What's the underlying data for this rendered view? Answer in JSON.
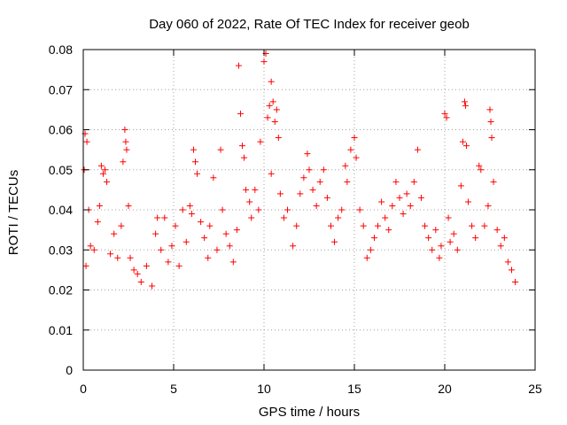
{
  "chart_data": {
    "type": "scatter",
    "title": "Day 060 of 2022, Rate Of TEC Index for receiver geob",
    "xlabel": "GPS time / hours",
    "ylabel": "ROTI / TECUs",
    "xlim": [
      0,
      25
    ],
    "ylim": [
      0,
      0.08
    ],
    "x_ticks": [
      0,
      5,
      10,
      15,
      20,
      25
    ],
    "y_ticks": [
      0,
      0.01,
      0.02,
      0.03,
      0.04,
      0.05,
      0.06,
      0.07,
      0.08
    ],
    "x_tick_labels": [
      "0",
      "5",
      "10",
      "15",
      "20",
      "25"
    ],
    "y_tick_labels": [
      "0",
      "0.01",
      "0.02",
      "0.03",
      "0.04",
      "0.05",
      "0.06",
      "0.07",
      "0.08"
    ],
    "grid": true,
    "legend": "none",
    "marker": "plus",
    "color": "#ff0000",
    "series": [
      {
        "points": [
          [
            0.1,
            0.059
          ],
          [
            0.2,
            0.057
          ],
          [
            0.05,
            0.05
          ],
          [
            0.3,
            0.04
          ],
          [
            0.15,
            0.026
          ],
          [
            0.4,
            0.031
          ],
          [
            0.6,
            0.03
          ],
          [
            0.8,
            0.037
          ],
          [
            1.0,
            0.051
          ],
          [
            1.1,
            0.049
          ],
          [
            1.2,
            0.05
          ],
          [
            1.3,
            0.047
          ],
          [
            0.9,
            0.041
          ],
          [
            1.5,
            0.029
          ],
          [
            1.7,
            0.034
          ],
          [
            1.9,
            0.028
          ],
          [
            2.1,
            0.036
          ],
          [
            2.3,
            0.06
          ],
          [
            2.35,
            0.057
          ],
          [
            2.4,
            0.055
          ],
          [
            2.2,
            0.052
          ],
          [
            2.5,
            0.041
          ],
          [
            2.6,
            0.028
          ],
          [
            2.8,
            0.025
          ],
          [
            3.0,
            0.024
          ],
          [
            3.2,
            0.022
          ],
          [
            3.5,
            0.026
          ],
          [
            3.8,
            0.021
          ],
          [
            4.0,
            0.034
          ],
          [
            4.1,
            0.038
          ],
          [
            4.3,
            0.03
          ],
          [
            4.5,
            0.038
          ],
          [
            4.7,
            0.027
          ],
          [
            4.9,
            0.031
          ],
          [
            5.1,
            0.036
          ],
          [
            5.3,
            0.026
          ],
          [
            5.5,
            0.04
          ],
          [
            5.7,
            0.032
          ],
          [
            5.9,
            0.041
          ],
          [
            6.0,
            0.039
          ],
          [
            6.1,
            0.055
          ],
          [
            6.2,
            0.052
          ],
          [
            6.3,
            0.049
          ],
          [
            6.5,
            0.037
          ],
          [
            6.7,
            0.033
          ],
          [
            6.9,
            0.028
          ],
          [
            7.0,
            0.036
          ],
          [
            7.2,
            0.048
          ],
          [
            7.4,
            0.03
          ],
          [
            7.6,
            0.055
          ],
          [
            7.7,
            0.04
          ],
          [
            7.9,
            0.034
          ],
          [
            8.1,
            0.031
          ],
          [
            8.3,
            0.027
          ],
          [
            8.5,
            0.035
          ],
          [
            8.6,
            0.076
          ],
          [
            8.7,
            0.064
          ],
          [
            8.8,
            0.056
          ],
          [
            8.9,
            0.053
          ],
          [
            9.0,
            0.045
          ],
          [
            9.2,
            0.042
          ],
          [
            9.3,
            0.038
          ],
          [
            9.5,
            0.045
          ],
          [
            9.7,
            0.04
          ],
          [
            9.8,
            0.057
          ],
          [
            10.0,
            0.077
          ],
          [
            10.1,
            0.079
          ],
          [
            10.3,
            0.066
          ],
          [
            10.2,
            0.063
          ],
          [
            10.4,
            0.072
          ],
          [
            10.5,
            0.067
          ],
          [
            10.6,
            0.062
          ],
          [
            10.7,
            0.065
          ],
          [
            10.8,
            0.058
          ],
          [
            10.4,
            0.049
          ],
          [
            10.9,
            0.044
          ],
          [
            11.1,
            0.038
          ],
          [
            11.3,
            0.04
          ],
          [
            11.6,
            0.031
          ],
          [
            11.8,
            0.036
          ],
          [
            12.0,
            0.044
          ],
          [
            12.2,
            0.048
          ],
          [
            12.4,
            0.054
          ],
          [
            12.5,
            0.05
          ],
          [
            12.7,
            0.045
          ],
          [
            12.9,
            0.041
          ],
          [
            13.1,
            0.047
          ],
          [
            13.3,
            0.05
          ],
          [
            13.5,
            0.043
          ],
          [
            13.7,
            0.036
          ],
          [
            13.9,
            0.032
          ],
          [
            14.1,
            0.038
          ],
          [
            14.3,
            0.04
          ],
          [
            14.5,
            0.051
          ],
          [
            14.6,
            0.047
          ],
          [
            14.8,
            0.055
          ],
          [
            15.0,
            0.058
          ],
          [
            15.1,
            0.053
          ],
          [
            15.3,
            0.04
          ],
          [
            15.5,
            0.036
          ],
          [
            15.7,
            0.028
          ],
          [
            15.9,
            0.03
          ],
          [
            16.1,
            0.033
          ],
          [
            16.3,
            0.036
          ],
          [
            16.5,
            0.042
          ],
          [
            16.7,
            0.038
          ],
          [
            16.9,
            0.035
          ],
          [
            17.1,
            0.041
          ],
          [
            17.3,
            0.047
          ],
          [
            17.5,
            0.043
          ],
          [
            17.7,
            0.039
          ],
          [
            17.9,
            0.044
          ],
          [
            18.1,
            0.041
          ],
          [
            18.3,
            0.047
          ],
          [
            18.5,
            0.055
          ],
          [
            18.7,
            0.043
          ],
          [
            18.9,
            0.036
          ],
          [
            19.1,
            0.033
          ],
          [
            19.3,
            0.03
          ],
          [
            19.5,
            0.035
          ],
          [
            19.7,
            0.028
          ],
          [
            19.8,
            0.031
          ],
          [
            20.0,
            0.064
          ],
          [
            20.1,
            0.063
          ],
          [
            20.2,
            0.038
          ],
          [
            20.3,
            0.032
          ],
          [
            20.5,
            0.034
          ],
          [
            20.7,
            0.03
          ],
          [
            20.9,
            0.046
          ],
          [
            21.0,
            0.057
          ],
          [
            21.1,
            0.067
          ],
          [
            21.15,
            0.066
          ],
          [
            21.2,
            0.056
          ],
          [
            21.3,
            0.042
          ],
          [
            21.5,
            0.036
          ],
          [
            21.7,
            0.033
          ],
          [
            21.9,
            0.051
          ],
          [
            22.0,
            0.05
          ],
          [
            22.2,
            0.036
          ],
          [
            22.4,
            0.041
          ],
          [
            22.5,
            0.065
          ],
          [
            22.55,
            0.062
          ],
          [
            22.6,
            0.058
          ],
          [
            22.7,
            0.047
          ],
          [
            22.9,
            0.035
          ],
          [
            23.1,
            0.031
          ],
          [
            23.3,
            0.033
          ],
          [
            23.5,
            0.027
          ],
          [
            23.7,
            0.025
          ],
          [
            23.9,
            0.022
          ]
        ]
      }
    ]
  }
}
